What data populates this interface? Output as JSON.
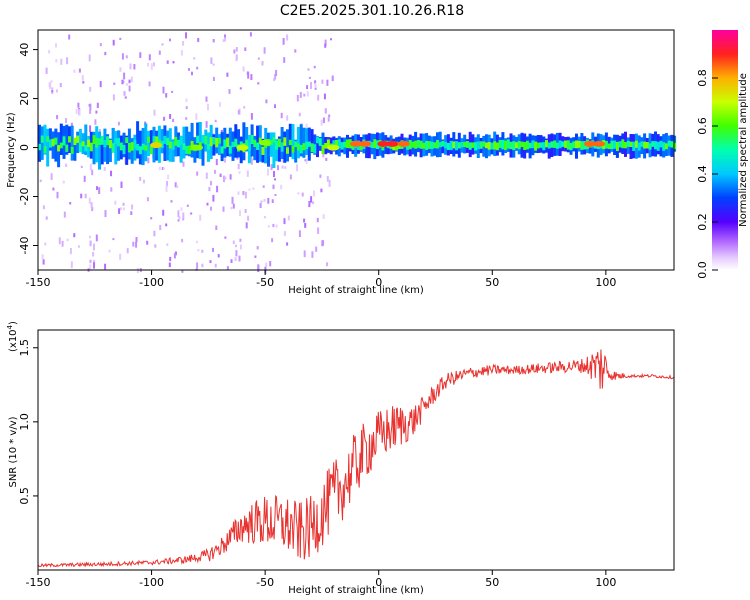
{
  "title": "C2E5.2025.301.10.26.R18",
  "chart_data": [
    {
      "type": "heatmap",
      "name": "spectrogram",
      "xlabel": "Height of straight line (km)",
      "ylabel": "Frequency (Hz)",
      "xlim": [
        -150,
        130
      ],
      "ylim": [
        -50,
        48
      ],
      "xticks": [
        -150,
        -100,
        -50,
        0,
        50,
        100
      ],
      "yticks": [
        -40,
        -20,
        0,
        20,
        40
      ],
      "colorbar": {
        "label": "Normalized spectral amplitude",
        "range": [
          0,
          1
        ],
        "ticks": [
          "0.0",
          "0.2",
          "0.4",
          "0.6",
          "0.8"
        ]
      },
      "bands": [
        {
          "x0": -150,
          "x1": -30,
          "center_hz": 1,
          "halfwidth_hz": 6,
          "level": 0.35
        },
        {
          "x0": -30,
          "x1": 130,
          "center_hz": 1,
          "halfwidth_hz": 4,
          "level": 0.3
        },
        {
          "x0": -150,
          "x1": 130,
          "center_hz": 1,
          "halfwidth_hz": 1.5,
          "level": 0.55
        }
      ],
      "hotspots": [
        {
          "x": -98,
          "hz": 1,
          "level": 0.75
        },
        {
          "x": -80,
          "hz": 0,
          "level": 0.65
        },
        {
          "x": -60,
          "hz": 0,
          "level": 0.7
        },
        {
          "x": -50,
          "hz": 2,
          "level": 0.65
        },
        {
          "x": -20,
          "hz": 0,
          "level": 0.7
        },
        {
          "x": -10,
          "hz": 1.5,
          "level": 0.85
        },
        {
          "x": -6,
          "hz": 1.5,
          "level": 0.85
        },
        {
          "x": 2,
          "hz": 1.5,
          "level": 0.9
        },
        {
          "x": 6,
          "hz": 1.5,
          "level": 0.9
        },
        {
          "x": 11,
          "hz": 1.5,
          "level": 0.85
        },
        {
          "x": 93,
          "hz": 1.5,
          "level": 0.85
        },
        {
          "x": 97,
          "hz": 1.5,
          "level": 0.85
        }
      ]
    },
    {
      "type": "line",
      "name": "snr",
      "xlabel": "Height of straight line (km)",
      "ylabel": "SNR (10 * v/v)",
      "exponent_label": "(x10^4)",
      "exponent_base": "(x10",
      "exponent_power": "4",
      "xlim": [
        -150,
        130
      ],
      "ylim": [
        0,
        1.62
      ],
      "xticks": [
        -150,
        -100,
        -50,
        0,
        50,
        100
      ],
      "yticks": [
        "0.5",
        "1.0",
        "1.5"
      ],
      "color": "#e8322f",
      "series": [
        {
          "name": "SNR",
          "x": [
            -150,
            -120,
            -100,
            -85,
            -75,
            -70,
            -65,
            -60,
            -55,
            -50,
            -45,
            -40,
            -35,
            -30,
            -25,
            -20,
            -15,
            -10,
            -5,
            0,
            5,
            10,
            15,
            20,
            25,
            30,
            40,
            50,
            60,
            70,
            80,
            90,
            95,
            100,
            102,
            105,
            110,
            120,
            130
          ],
          "y": [
            0.03,
            0.04,
            0.05,
            0.07,
            0.1,
            0.15,
            0.22,
            0.3,
            0.32,
            0.33,
            0.32,
            0.3,
            0.25,
            0.28,
            0.38,
            0.5,
            0.58,
            0.72,
            0.82,
            0.9,
            0.95,
            0.98,
            1.0,
            1.1,
            1.2,
            1.28,
            1.33,
            1.35,
            1.35,
            1.36,
            1.37,
            1.38,
            1.38,
            1.36,
            1.32,
            1.31,
            1.31,
            1.31,
            1.3
          ]
        }
      ],
      "noise_envelope": {
        "x": [
          -150,
          -100,
          -80,
          -70,
          -60,
          -50,
          -40,
          -30,
          -20,
          -10,
          0,
          10,
          20,
          30,
          40,
          60,
          80,
          90,
          95,
          98,
          100,
          102,
          110,
          130
        ],
        "amp": [
          0.01,
          0.015,
          0.03,
          0.06,
          0.12,
          0.18,
          0.2,
          0.22,
          0.24,
          0.22,
          0.18,
          0.15,
          0.08,
          0.05,
          0.04,
          0.03,
          0.04,
          0.05,
          0.12,
          0.2,
          0.12,
          0.04,
          0.01,
          0.01
        ]
      }
    }
  ]
}
